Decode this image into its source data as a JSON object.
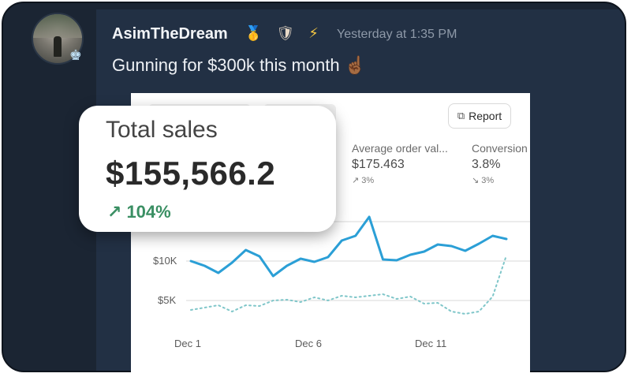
{
  "message": {
    "username": "AsimTheDream",
    "badges": [
      {
        "name": "medal-icon",
        "glyph": "🥇"
      },
      {
        "name": "shield-icon",
        "glyph": "🛡"
      },
      {
        "name": "lightning-icon",
        "glyph": "⚡"
      }
    ],
    "timestamp": "Yesterday at 1:35 PM",
    "text": "Gunning for $300k this month",
    "text_emoji": "☝🏾",
    "avatar_badge": "♚"
  },
  "report_button": {
    "label": "Report",
    "icon": "report-icon"
  },
  "metrics": [
    {
      "label": "Average order val...",
      "value": "$175.463",
      "change": "↗ 3%"
    },
    {
      "label": "Conversion",
      "value": "3.8%",
      "change": "↘ 3%"
    }
  ],
  "callout": {
    "title": "Total sales",
    "value": "$155,566.2",
    "change": "104%",
    "arrow": "↗",
    "change_color": "#3a8f63"
  },
  "colors": {
    "primary_line": "#2b9fd6",
    "comparison_line": "#7fc6c9"
  },
  "chart_data": {
    "type": "line",
    "title": "",
    "xlabel": "",
    "ylabel": "",
    "x_ticks": [
      "Dec 1",
      "Dec 6",
      "Dec 11"
    ],
    "y_ticks": [
      "$5K",
      "$10K"
    ],
    "ylim": [
      0,
      20000
    ],
    "series": [
      {
        "values": [
          10000,
          9400,
          8500,
          9800,
          11400,
          10600,
          8100,
          9400,
          10300,
          9900,
          10500,
          12600,
          13200,
          15600,
          10200,
          10100,
          10800,
          11200,
          12100,
          11900,
          11300,
          12200,
          13200,
          12800
        ]
      },
      {
        "values": [
          3800,
          4100,
          4400,
          3600,
          4400,
          4300,
          5000,
          5100,
          4800,
          5400,
          5000,
          5600,
          5400,
          5600,
          5800,
          5200,
          5500,
          4600,
          4700,
          3600,
          3300,
          3600,
          5500,
          10700
        ]
      }
    ]
  }
}
